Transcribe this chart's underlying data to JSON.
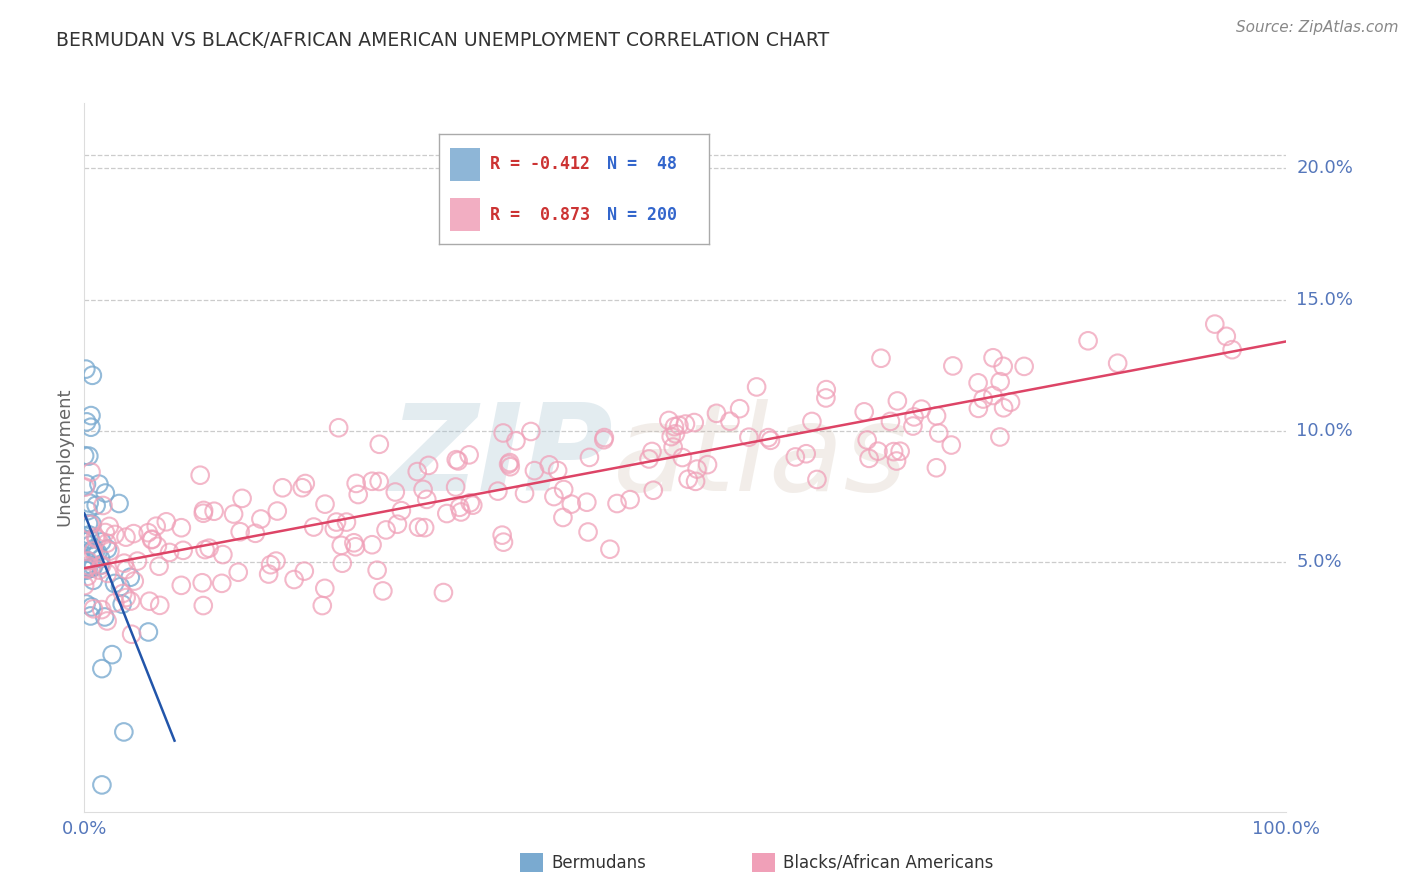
{
  "title": "BERMUDAN VS BLACK/AFRICAN AMERICAN UNEMPLOYMENT CORRELATION CHART",
  "source": "Source: ZipAtlas.com",
  "ylabel": "Unemployment",
  "xlim": [
    0.0,
    1.0
  ],
  "ylim": [
    -0.045,
    0.225
  ],
  "yticks": [
    0.05,
    0.1,
    0.15,
    0.2
  ],
  "ytick_labels": [
    "5.0%",
    "10.0%",
    "15.0%",
    "20.0%"
  ],
  "xtick_positions": [
    0.0,
    0.2,
    0.4,
    0.6,
    0.8,
    1.0
  ],
  "xtick_labels": [
    "0.0%",
    "",
    "",
    "",
    "",
    "100.0%"
  ],
  "bermudan_N": 48,
  "bermudan_R": -0.412,
  "black_N": 200,
  "black_R": 0.873,
  "blue_scatter_color": "#7AAAD0",
  "pink_scatter_color": "#F0A0B8",
  "blue_line_color": "#2255AA",
  "pink_line_color": "#DD4466",
  "title_color": "#333333",
  "axis_label_color": "#5577BB",
  "source_color": "#888888",
  "grid_color": "#CCCCCC",
  "legend_label_blue": "Bermudans",
  "legend_label_pink": "Blacks/African Americans",
  "background_color": "#FFFFFF",
  "legend_R_blue": "R = -0.412",
  "legend_N_blue": "N =  48",
  "legend_R_pink": "R =  0.873",
  "legend_N_pink": "N = 200"
}
